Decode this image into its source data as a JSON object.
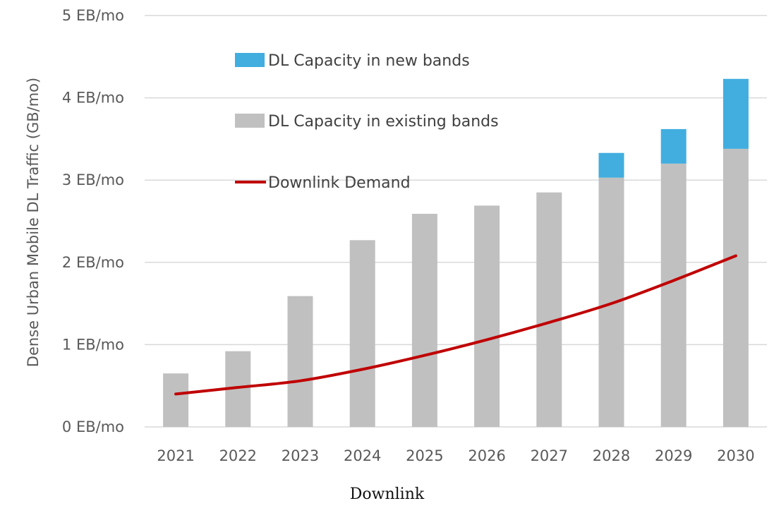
{
  "chart_data": {
    "type": "bar",
    "categories": [
      "2021",
      "2022",
      "2023",
      "2024",
      "2025",
      "2026",
      "2027",
      "2028",
      "2029",
      "2030"
    ],
    "series": [
      {
        "name": "DL Capacity in existing bands",
        "kind": "bar",
        "stack": "capacity",
        "values": [
          0.65,
          0.92,
          1.59,
          2.27,
          2.59,
          2.69,
          2.85,
          3.03,
          3.2,
          3.38
        ]
      },
      {
        "name": "DL Capacity in new bands",
        "kind": "bar",
        "stack": "capacity",
        "values": [
          0,
          0,
          0,
          0,
          0,
          0,
          0,
          0.3,
          0.42,
          0.85
        ]
      },
      {
        "name": "Downlink Demand",
        "kind": "line",
        "values": [
          0.4,
          0.48,
          0.56,
          0.7,
          0.87,
          1.06,
          1.27,
          1.5,
          1.78,
          2.08
        ]
      }
    ],
    "title": "",
    "xlabel": "",
    "ylabel": "Dense Urban Mobile DL Traffic (GB/mo)",
    "ylim": [
      0,
      5
    ],
    "yticks": [
      {
        "value": 0,
        "label": "0 EB/mo"
      },
      {
        "value": 1,
        "label": "1 EB/mo"
      },
      {
        "value": 2,
        "label": "2 EB/mo"
      },
      {
        "value": 3,
        "label": "3 EB/mo"
      },
      {
        "value": 4,
        "label": "4 EB/mo"
      },
      {
        "value": 5,
        "label": "5 EB/mo"
      }
    ],
    "grid": true,
    "legend_placement": "top-left inside plot",
    "colors": {
      "DL Capacity in existing bands": "#c0c0c0",
      "DL Capacity in new bands": "#41aedf",
      "Downlink Demand": "#c00000",
      "gridline": "#d9d9d9"
    }
  },
  "caption": "Downlink"
}
